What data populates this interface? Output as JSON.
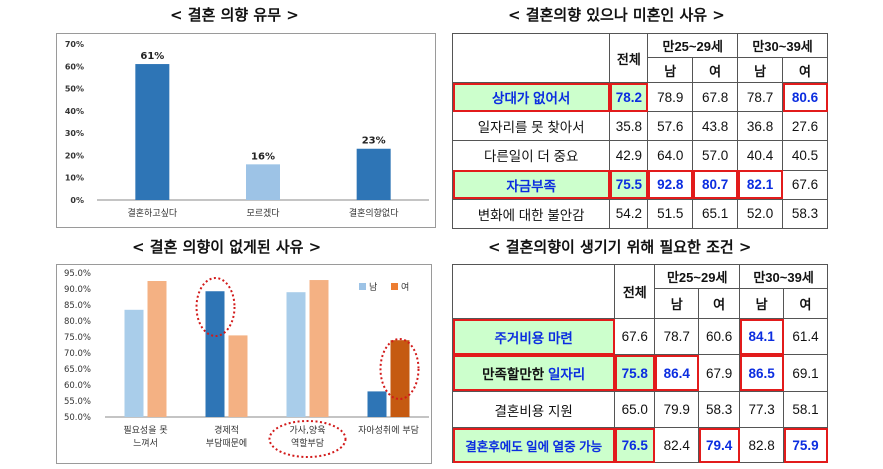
{
  "headings": {
    "chart1": "< 결혼 의향 유무 >",
    "table1": "< 결혼의향 있으나 미혼인 사유 >",
    "chart2": "< 결혼 의향이 없게된 사유 >",
    "table2": "< 결혼의향이 생기기 위해 필요한 조건 >"
  },
  "chart_data": [
    {
      "type": "bar",
      "title": "< 결혼 의향 유무 >",
      "categories": [
        "결혼하고싶다",
        "모르겠다",
        "결혼의향없다"
      ],
      "values": [
        61,
        16,
        23
      ],
      "data_labels": [
        "61%",
        "16%",
        "23%"
      ],
      "bar_colors": [
        "#2e75b6",
        "#9dc3e6",
        "#2e75b6"
      ],
      "ylim": [
        0,
        70
      ],
      "yticks": [
        "0%",
        "10%",
        "20%",
        "30%",
        "40%",
        "50%",
        "60%",
        "70%"
      ],
      "grid": false
    },
    {
      "type": "bar",
      "title": "< 결혼 의향이 없게된 사유 >",
      "categories": [
        "필요성을 못 느껴서",
        "경제적 부담때문에",
        "가사,양육 역할부담",
        "자아성취에 부담"
      ],
      "series": [
        {
          "name": "남",
          "color": "#a9cdea",
          "values": [
            83.5,
            89.3,
            89.0,
            58.0
          ]
        },
        {
          "name": "여",
          "color": "#f4b183",
          "values": [
            92.5,
            75.5,
            92.8,
            74.0
          ]
        }
      ],
      "highlight_series_colors": {
        "남": "#2e75b6",
        "여": "#c55a11"
      },
      "highlighted": [
        [
          1,
          "남"
        ],
        [
          3,
          "남"
        ],
        [
          3,
          "여"
        ]
      ],
      "ylim": [
        50,
        95
      ],
      "yticks": [
        "50.0%",
        "55.0%",
        "60.0%",
        "65.0%",
        "70.0%",
        "75.0%",
        "80.0%",
        "85.0%",
        "90.0%",
        "95.0%"
      ],
      "legend_position": "top-right",
      "grid": false
    },
    {
      "type": "table",
      "title": "< 결혼의향 있으나 미혼인 사유 >",
      "header": {
        "total": "전체",
        "group1": "만25~29세",
        "group2": "만30~39세",
        "male": "남",
        "female": "여"
      },
      "rows": [
        {
          "label": "상대가 없어서",
          "values": [
            "78.2",
            "78.9",
            "67.8",
            "78.7",
            "80.6"
          ]
        },
        {
          "label": "일자리를 못 찾아서",
          "values": [
            "35.8",
            "57.6",
            "43.8",
            "36.8",
            "27.6"
          ]
        },
        {
          "label": "다른일이 더 중요",
          "values": [
            "42.9",
            "64.0",
            "57.0",
            "40.4",
            "40.5"
          ]
        },
        {
          "label": "자금부족",
          "values": [
            "75.5",
            "92.8",
            "80.7",
            "82.1",
            "67.6"
          ]
        },
        {
          "label": "변화에 대한 불안감",
          "values": [
            "54.2",
            "51.5",
            "65.1",
            "52.0",
            "58.3"
          ]
        }
      ]
    },
    {
      "type": "table",
      "title": "< 결혼의향이 생기기 위해 필요한 조건 >",
      "header": {
        "total": "전체",
        "group1": "만25~29세",
        "group2": "만30~39세",
        "male": "남",
        "female": "여"
      },
      "rows": [
        {
          "label": "주거비용 마련",
          "values": [
            "67.6",
            "78.7",
            "60.6",
            "84.1",
            "61.4"
          ]
        },
        {
          "label_prefix": "만족할만한 ",
          "label_emph": "일자리",
          "values": [
            "75.8",
            "86.4",
            "67.9",
            "86.5",
            "69.1"
          ]
        },
        {
          "label": "결혼비용 지원",
          "values": [
            "65.0",
            "79.9",
            "58.3",
            "77.3",
            "58.1"
          ]
        },
        {
          "label": "결혼후에도 일에 열중 가능",
          "values": [
            "76.5",
            "82.4",
            "79.4",
            "82.8",
            "75.9"
          ]
        }
      ]
    }
  ]
}
